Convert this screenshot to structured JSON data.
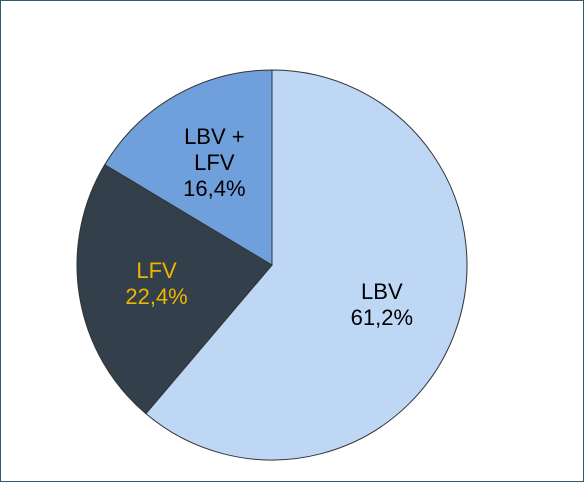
{
  "chart_data": {
    "type": "pie",
    "categories": [
      "LBV",
      "LFV",
      "LBV + LFV"
    ],
    "values": [
      61.2,
      22.4,
      16.4
    ],
    "value_labels": [
      "61,2%",
      "22,4%",
      "16,4%"
    ],
    "colors": [
      "#bdd7f5",
      "#333f4a",
      "#6fa0dc"
    ],
    "label_colors": [
      "#000000",
      "#f0b400",
      "#000000"
    ]
  }
}
